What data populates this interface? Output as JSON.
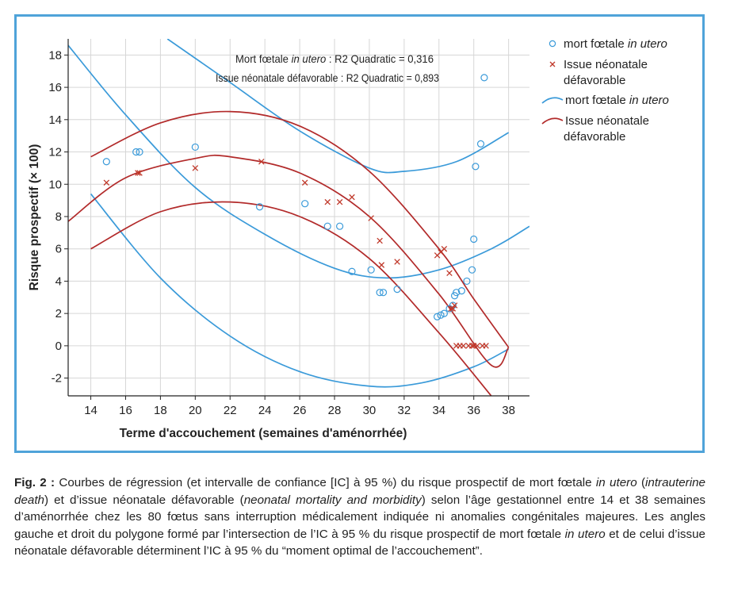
{
  "chart_data": {
    "type": "scatter",
    "xlabel": "Terme d'accouchement (semaines d'aménorrhée)",
    "ylabel": "Risque prospectif (× 100)",
    "xlim": [
      12.7,
      39.2
    ],
    "ylim": [
      -3.1,
      19.0
    ],
    "x_ticks": [
      14,
      16,
      18,
      20,
      22,
      24,
      26,
      28,
      30,
      32,
      34,
      36,
      38
    ],
    "y_ticks": [
      -2,
      0,
      2,
      4,
      6,
      8,
      10,
      12,
      14,
      16,
      18
    ],
    "grid": true,
    "legend_position": "right",
    "annotations": [
      {
        "text_before": "Mort fœtale ",
        "text_italic": "in utero",
        "text_after": " : R2 Quadratic = 0,316"
      },
      {
        "text_before": "Issue néonatale défavorable : R2 Quadratic = 0,893",
        "text_italic": "",
        "text_after": ""
      }
    ],
    "legend": [
      {
        "label_main": "mort fœtale ",
        "label_italic": "in utero",
        "label_line2": "",
        "marker": "circle",
        "color": "#3a9ad9"
      },
      {
        "label_main": "Issue néonatale",
        "label_italic": "",
        "label_line2": "défavorable",
        "marker": "x",
        "color": "#c0392b"
      },
      {
        "label_main": "mort fœtale ",
        "label_italic": "in utero",
        "label_line2": "",
        "marker": "line",
        "color": "#3a9ad9"
      },
      {
        "label_main": "Issue néonatale",
        "label_italic": "",
        "label_line2": "défavorable",
        "marker": "line",
        "color": "#b22a2a"
      }
    ],
    "series": [
      {
        "marker": "circle",
        "color": "#3a9ad9",
        "points": [
          [
            14.9,
            11.4
          ],
          [
            16.6,
            12.0
          ],
          [
            16.8,
            12.0
          ],
          [
            20.0,
            12.3
          ],
          [
            23.7,
            8.6
          ],
          [
            26.3,
            8.8
          ],
          [
            27.6,
            7.4
          ],
          [
            28.3,
            7.4
          ],
          [
            29.0,
            4.6
          ],
          [
            30.1,
            4.7
          ],
          [
            30.6,
            3.3
          ],
          [
            30.8,
            3.3
          ],
          [
            31.6,
            3.5
          ],
          [
            33.9,
            1.8
          ],
          [
            34.1,
            1.9
          ],
          [
            34.3,
            2.0
          ],
          [
            34.6,
            2.3
          ],
          [
            34.8,
            2.5
          ],
          [
            34.9,
            3.1
          ],
          [
            35.0,
            3.3
          ],
          [
            35.3,
            3.4
          ],
          [
            35.6,
            4.0
          ],
          [
            35.9,
            4.7
          ],
          [
            36.0,
            6.6
          ],
          [
            36.1,
            11.1
          ],
          [
            36.4,
            12.5
          ],
          [
            36.6,
            16.6
          ]
        ]
      },
      {
        "marker": "x",
        "color": "#c0392b",
        "points": [
          [
            14.9,
            10.1
          ],
          [
            16.7,
            10.7
          ],
          [
            16.8,
            10.7
          ],
          [
            20.0,
            11.0
          ],
          [
            23.8,
            11.4
          ],
          [
            26.3,
            10.1
          ],
          [
            27.6,
            8.9
          ],
          [
            28.3,
            8.9
          ],
          [
            29.0,
            9.2
          ],
          [
            30.1,
            7.9
          ],
          [
            30.6,
            6.5
          ],
          [
            30.7,
            5.0
          ],
          [
            31.6,
            5.2
          ],
          [
            33.9,
            5.6
          ],
          [
            34.1,
            5.8
          ],
          [
            34.3,
            6.0
          ],
          [
            34.6,
            4.5
          ],
          [
            34.7,
            2.3
          ],
          [
            34.8,
            2.3
          ],
          [
            34.9,
            2.5
          ],
          [
            35.0,
            0.0
          ],
          [
            35.2,
            0.0
          ],
          [
            35.4,
            0.0
          ],
          [
            35.7,
            0.0
          ],
          [
            35.9,
            0.0
          ],
          [
            36.0,
            0.0
          ],
          [
            36.2,
            0.0
          ],
          [
            36.5,
            0.0
          ],
          [
            36.7,
            0.0
          ]
        ]
      }
    ],
    "curves": [
      {
        "color": "#3a9ad9",
        "points": [
          [
            12.7,
            18.6
          ],
          [
            16,
            14.3
          ],
          [
            20,
            9.8
          ],
          [
            24,
            6.9
          ],
          [
            28,
            4.8
          ],
          [
            31,
            4.2
          ],
          [
            34,
            4.7
          ],
          [
            37,
            6.0
          ],
          [
            39.2,
            7.4
          ]
        ]
      },
      {
        "color": "#3a9ad9",
        "points": [
          [
            14,
            9.4
          ],
          [
            18,
            4.2
          ],
          [
            22,
            0.6
          ],
          [
            26,
            -1.6
          ],
          [
            30,
            -2.5
          ],
          [
            33,
            -2.3
          ],
          [
            36,
            -1.3
          ],
          [
            38,
            -0.2
          ]
        ]
      },
      {
        "color": "#3a9ad9",
        "points": [
          [
            18.4,
            19.0
          ],
          [
            22,
            16.3
          ],
          [
            26,
            13.3
          ],
          [
            30,
            11.0
          ],
          [
            32,
            10.8
          ],
          [
            35,
            11.4
          ],
          [
            38,
            13.2
          ]
        ]
      },
      {
        "color": "#b22a2a",
        "points": [
          [
            12.7,
            7.7
          ],
          [
            16,
            10.4
          ],
          [
            20,
            11.6
          ],
          [
            22,
            11.7
          ],
          [
            26,
            10.7
          ],
          [
            30,
            8.0
          ],
          [
            34,
            3.2
          ],
          [
            37,
            -1.2
          ],
          [
            38,
            -0.1
          ]
        ]
      },
      {
        "color": "#b22a2a",
        "points": [
          [
            14,
            11.7
          ],
          [
            18,
            13.8
          ],
          [
            22,
            14.5
          ],
          [
            26,
            13.6
          ],
          [
            30,
            10.8
          ],
          [
            34,
            6.0
          ],
          [
            36,
            2.9
          ],
          [
            38,
            -0.1
          ]
        ]
      },
      {
        "color": "#b22a2a",
        "points": [
          [
            14,
            6.0
          ],
          [
            18,
            8.3
          ],
          [
            22,
            8.9
          ],
          [
            26,
            8.0
          ],
          [
            30,
            5.4
          ],
          [
            34,
            0.8
          ],
          [
            37,
            -3.1
          ]
        ]
      }
    ]
  },
  "caption": {
    "label": "Fig. 2 :",
    "parts": [
      {
        "t": " Courbes de régression (et intervalle de confiance [IC] à 95 %) du risque prospectif de mort fœtale ",
        "i": false
      },
      {
        "t": "in utero",
        "i": true
      },
      {
        "t": " (",
        "i": false
      },
      {
        "t": "intrauterine death",
        "i": true
      },
      {
        "t": ") et d’issue néonatale défavorable (",
        "i": false
      },
      {
        "t": "neonatal mortality and morbidity",
        "i": true
      },
      {
        "t": ") selon l’âge gestationnel entre 14 et 38 semaines d’aménorrhée chez les 80 fœtus sans interruption médicalement indiquée ni anomalies congénitales majeures. Les angles gauche et droit du polygone formé par l’intersection de l’IC à 95 % du risque prospectif de mort fœtale ",
        "i": false
      },
      {
        "t": "in utero",
        "i": true
      },
      {
        "t": " et de celui d’issue néonatale défavorable déterminent l’IC à 95 % du “moment optimal de l’accouchement”.",
        "i": false
      }
    ]
  }
}
